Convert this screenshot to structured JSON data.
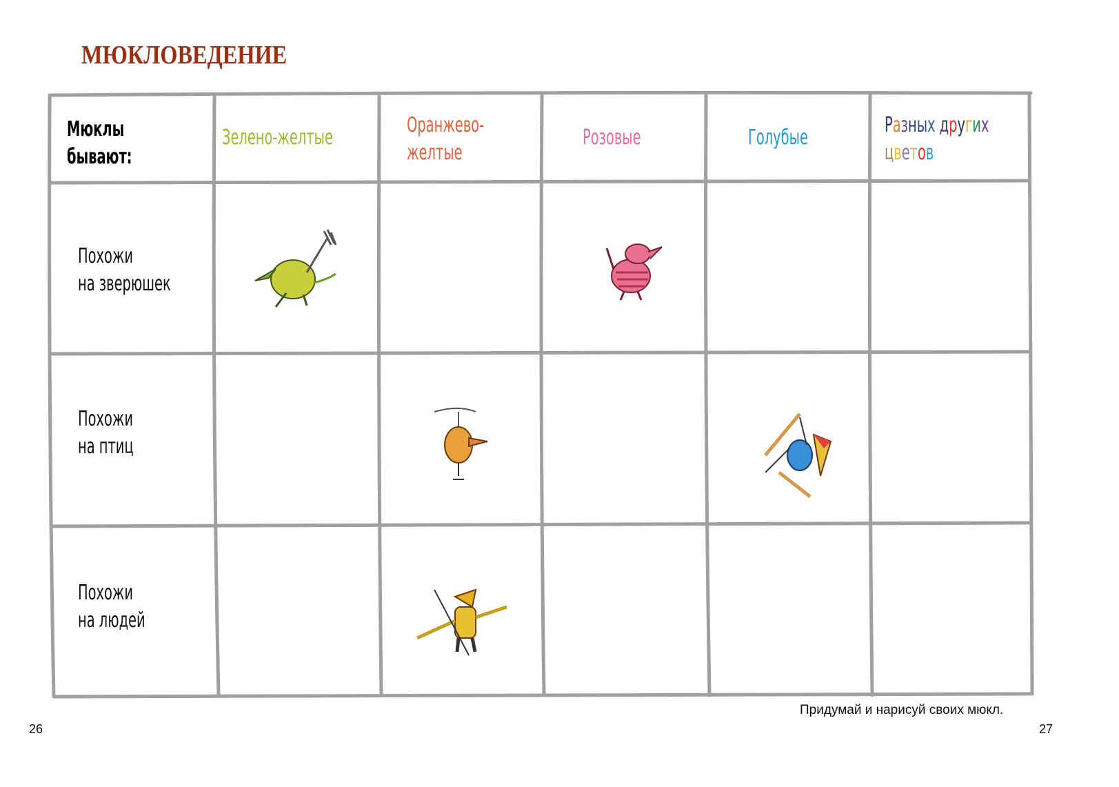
{
  "title": "МЮКЛОВЕДЕНИЕ",
  "table": {
    "corner": [
      "Мюклы",
      "бывают:"
    ],
    "columns": [
      {
        "lines": [
          "Зелено-желтые"
        ],
        "color": "#9bbb2a"
      },
      {
        "lines": [
          "Оранжево-",
          "желтые"
        ],
        "color": "#e8603a"
      },
      {
        "lines": [
          "Розовые"
        ],
        "color": "#e86aa2"
      },
      {
        "lines": [
          "Голубые"
        ],
        "color": "#1f9ad8"
      },
      {
        "lines": [
          "Разных других",
          "цветов"
        ],
        "multicolor": true,
        "letter_colors": [
          "#2d3a8c",
          "#e8803a",
          "#6a4a9a",
          "#333a7a",
          "#2d4a8c",
          "#2d6a8c",
          "#3a3a5a",
          "#e03a2a",
          "#2d2d6a",
          "#e8a02a",
          "#2a8a4a",
          "#7a3a9a",
          "#9a8a5a",
          "#f0c020",
          "#8a7ab0",
          "#c0c070",
          "#e03a2a",
          "#2aa0e0"
        ]
      }
    ],
    "rows": [
      {
        "lines": [
          "Похожи",
          "на зверюшек"
        ]
      },
      {
        "lines": [
          "Похожи",
          "на птиц"
        ]
      },
      {
        "lines": [
          "Похожи",
          "на людей"
        ]
      }
    ],
    "illustrations": [
      {
        "name": "green-yellow-animal-mukla-with-fork",
        "row": 0,
        "col": 0
      },
      {
        "name": "pink-animal-mukla",
        "row": 0,
        "col": 2
      },
      {
        "name": "orange-bird-mukla-with-propeller",
        "row": 1,
        "col": 1
      },
      {
        "name": "blue-bird-mukla-on-skis",
        "row": 1,
        "col": 3
      },
      {
        "name": "yellow-human-mukla-fisherman",
        "row": 2,
        "col": 1
      }
    ]
  },
  "footer": {
    "instruction": "Придумай и нарисуй своих мюкл.",
    "page_left": "26",
    "page_right": "27"
  },
  "colors": {
    "title": "#9a2f14",
    "grid": "#a0a0a0"
  }
}
